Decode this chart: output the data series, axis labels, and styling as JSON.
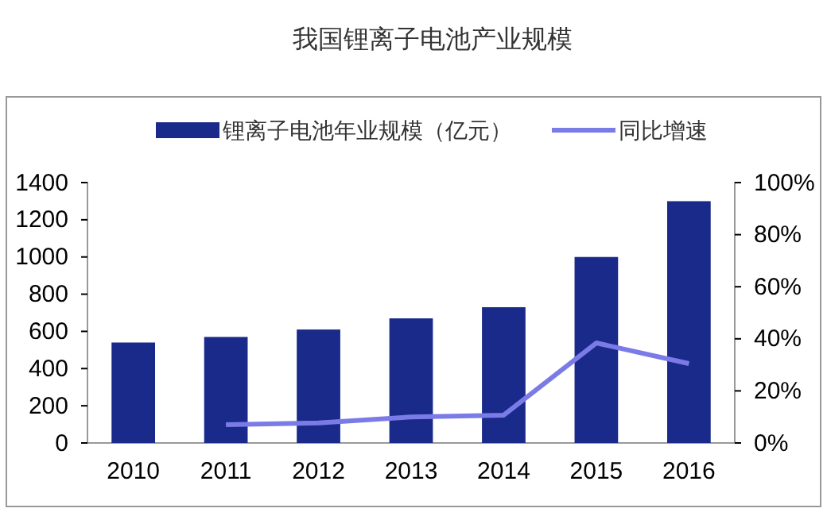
{
  "chart_data": {
    "type": "bar",
    "title": "我国锂离子电池产业规模",
    "categories": [
      "2010",
      "2011",
      "2012",
      "2013",
      "2014",
      "2015",
      "2016"
    ],
    "series": [
      {
        "name": "锂离子电池年业规模（亿元）",
        "color": "#1a2a8a",
        "values": [
          540,
          570,
          610,
          670,
          730,
          1000,
          1300
        ]
      },
      {
        "name": "同比增速",
        "type": "line",
        "axis": "y2",
        "color": "#7b7be8",
        "values": [
          null,
          7,
          7.7,
          10,
          10.7,
          38.4,
          30.5
        ]
      }
    ],
    "ylim": [
      0,
      1400
    ],
    "yticks": [
      0,
      200,
      400,
      600,
      800,
      1000,
      1200,
      1400
    ],
    "y2lim": [
      0,
      100
    ],
    "y2ticks": [
      {
        "value": 0,
        "label": "0%"
      },
      {
        "value": 20,
        "label": "20%"
      },
      {
        "value": 40,
        "label": "40%"
      },
      {
        "value": 60,
        "label": "60%"
      },
      {
        "value": 80,
        "label": "80%"
      },
      {
        "value": 100,
        "label": "100%"
      }
    ],
    "legend": "top",
    "grid": false,
    "line_style": "solid",
    "marker": "none"
  }
}
